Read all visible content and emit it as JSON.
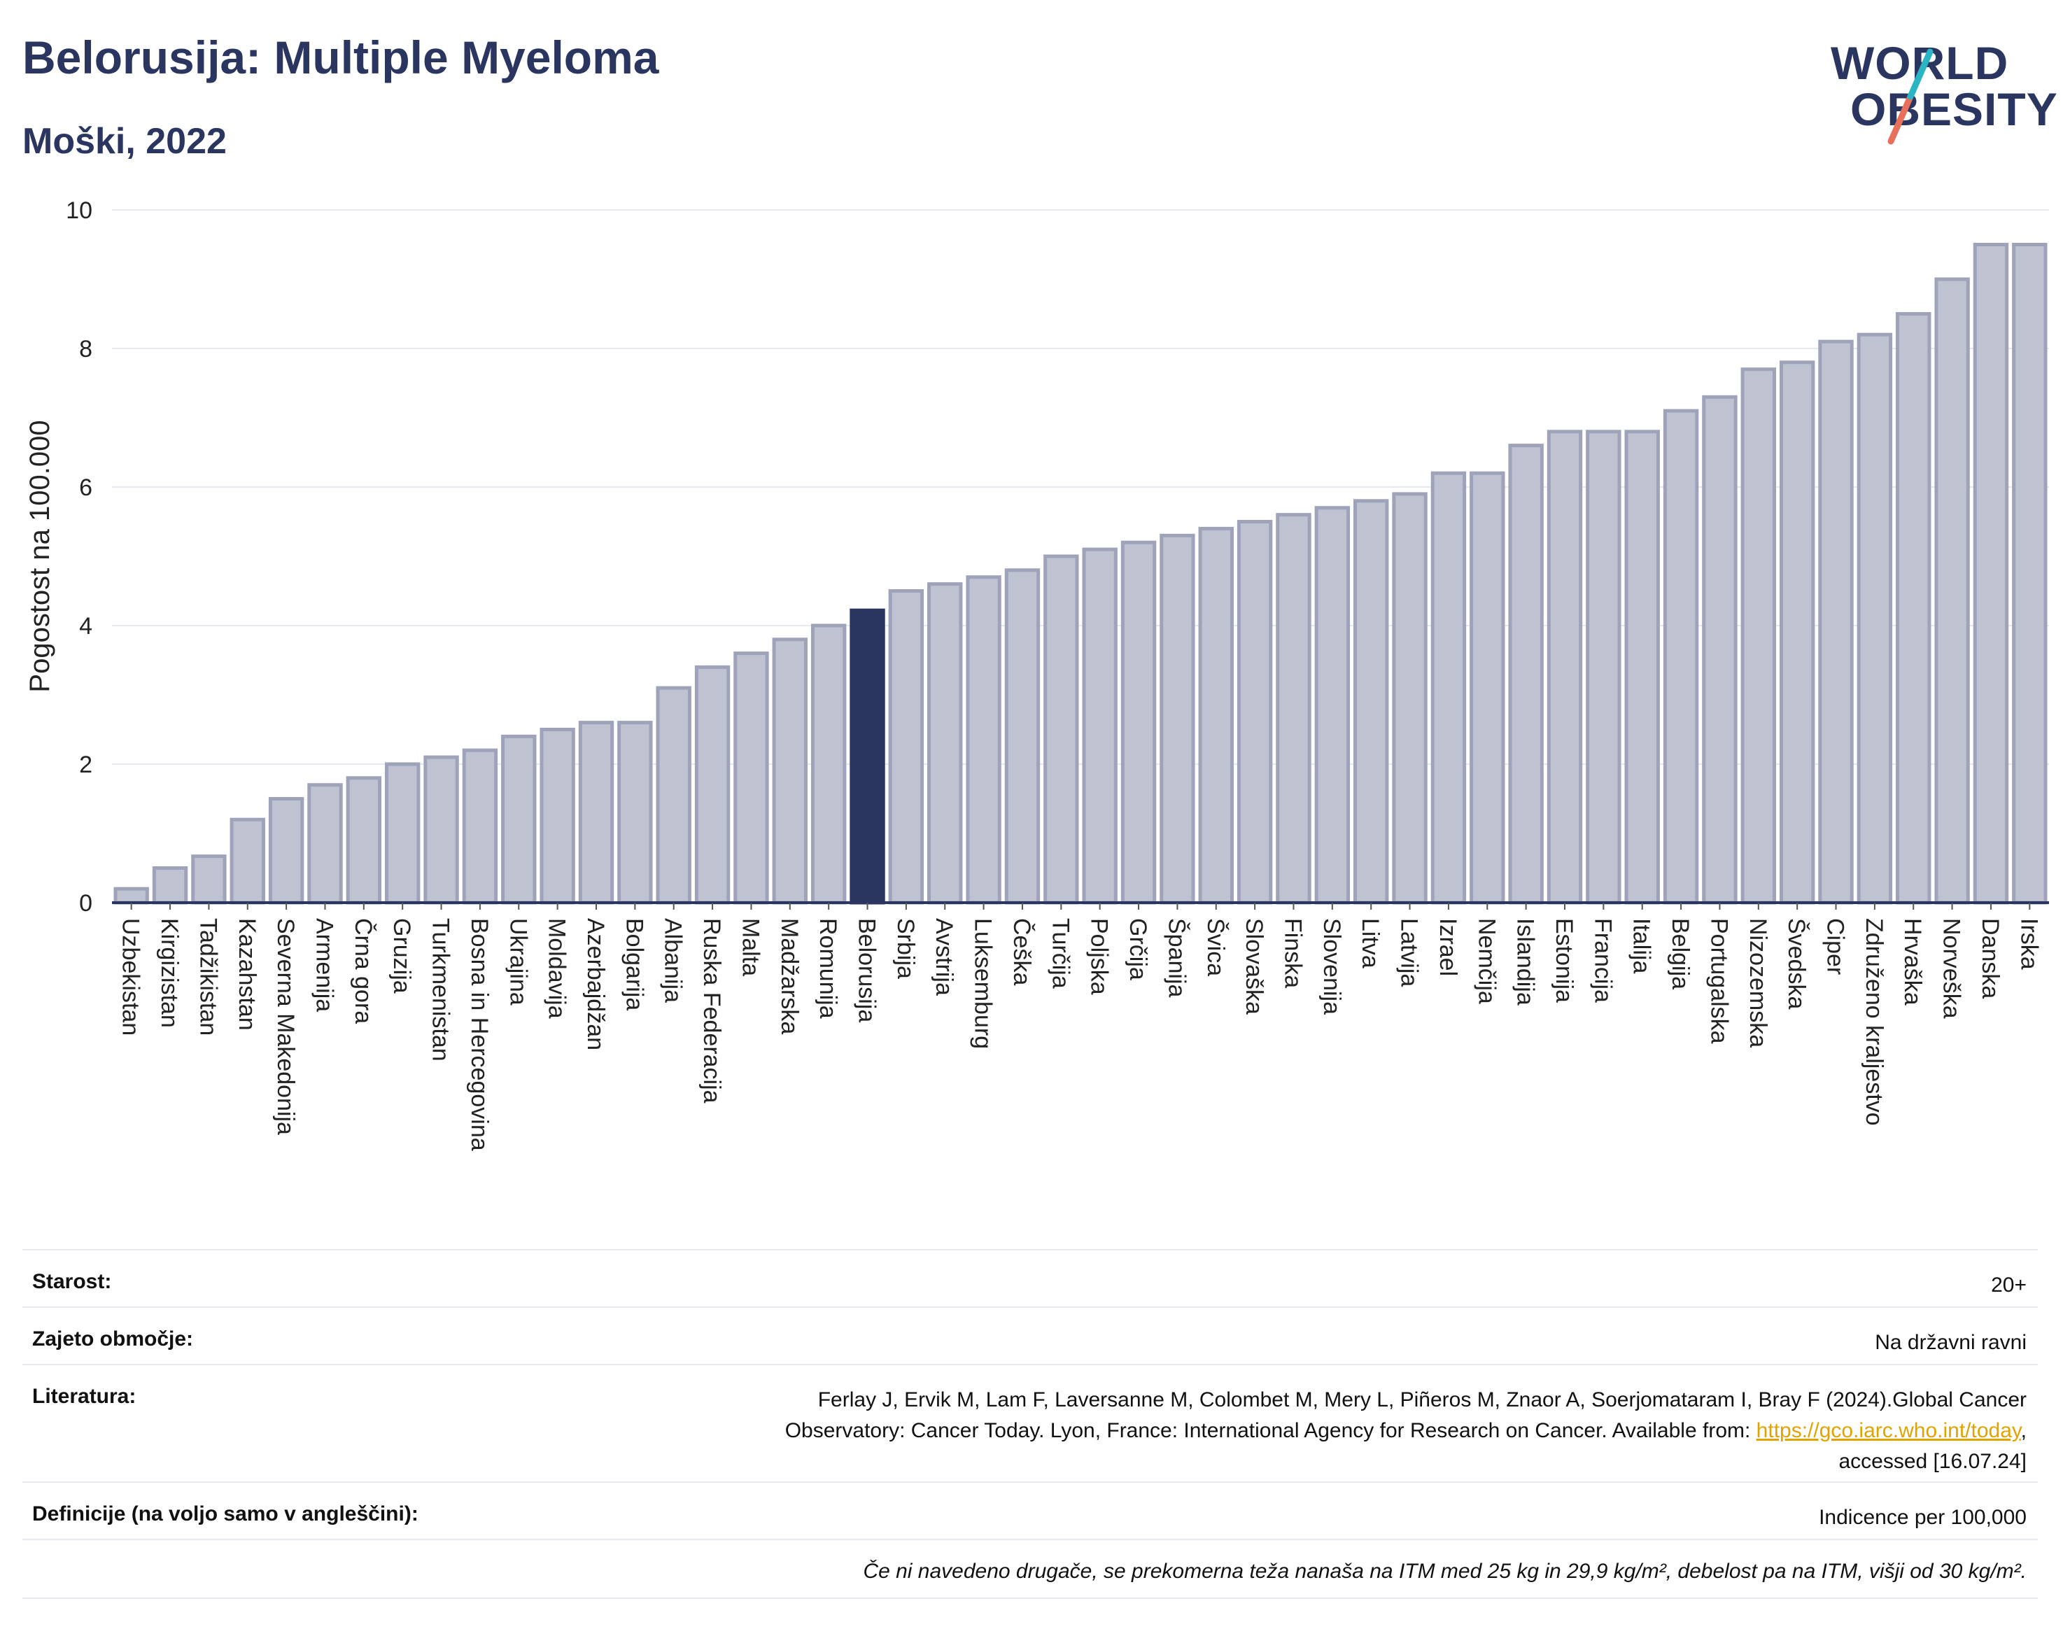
{
  "header": {
    "title": "Belorusija: Multiple Myeloma",
    "subtitle": "Moški, 2022"
  },
  "logo": {
    "line1": "WORLD",
    "line2": "OBESITY",
    "accent_colors": [
      "#2bb5c3",
      "#e8705a"
    ]
  },
  "colors": {
    "bar": "#bfc3d1",
    "bar_stroke": "#9ea3ba",
    "highlight": "#2a3560",
    "grid": "#e6e9ef",
    "axis": "#2a3560"
  },
  "chart_data": {
    "type": "bar",
    "ylabel": "Pogostost na 100.000",
    "ylim": [
      0,
      10
    ],
    "yticks": [
      "0",
      "2",
      "4",
      "6",
      "8",
      "10"
    ],
    "highlight": "Belorusija",
    "categories": [
      "Uzbekistan",
      "Kirgizistan",
      "Tadžikistan",
      "Kazahstan",
      "Severna Makedonija",
      "Armenija",
      "Črna gora",
      "Gruzija",
      "Turkmenistan",
      "Bosna in Hercegovina",
      "Ukrajina",
      "Moldavija",
      "Azerbajdžan",
      "Bolgarija",
      "Albanija",
      "Ruska Federacija",
      "Malta",
      "Madžarska",
      "Romunija",
      "Belorusija",
      "Srbija",
      "Avstrija",
      "Luksemburg",
      "Češka",
      "Turčija",
      "Poljska",
      "Grčija",
      "Španija",
      "Švica",
      "Slovaška",
      "Finska",
      "Slovenija",
      "Litva",
      "Latvija",
      "Izrael",
      "Nemčija",
      "Islandija",
      "Estonija",
      "Francija",
      "Italija",
      "Belgija",
      "Portugalska",
      "Nizozemska",
      "Švedska",
      "Ciper",
      "Združeno kraljestvo",
      "Hrvaška",
      "Norveška",
      "Danska",
      "Irska"
    ],
    "values": [
      0.2,
      0.5,
      0.67,
      1.2,
      1.5,
      1.7,
      1.8,
      2.0,
      2.1,
      2.2,
      2.4,
      2.5,
      2.6,
      2.6,
      3.1,
      3.4,
      3.6,
      3.8,
      4.0,
      4.22,
      4.5,
      4.6,
      4.7,
      4.8,
      5.0,
      5.1,
      5.2,
      5.3,
      5.4,
      5.5,
      5.6,
      5.7,
      5.8,
      5.9,
      6.2,
      6.2,
      6.6,
      6.8,
      6.8,
      6.8,
      7.1,
      7.3,
      7.7,
      7.8,
      8.1,
      8.2,
      8.5,
      9.0,
      9.5,
      9.5
    ]
  },
  "info": {
    "age_label": "Starost:",
    "age_value": "20+",
    "coverage_label": "Zajeto območje:",
    "coverage_value": "Na državni ravni",
    "refs_label": "Literatura:",
    "refs_text_1": "Ferlay J, Ervik M, Lam F, Laversanne M, Colombet M, Mery L, Piñeros M, Znaor A, Soerjomataram I, Bray F (2024).Global Cancer",
    "refs_text_2": "Observatory: Cancer Today. Lyon, France: International Agency for Research on Cancer. Available from: ",
    "refs_link": "https://gco.iarc.who.int/today",
    "refs_text_3": ",",
    "refs_text_4": "accessed [16.07.24]",
    "defs_label": "Definicije (na voljo samo v angleščini):",
    "defs_value": "Indicence per 100,000",
    "note": "Če ni navedeno drugače, se prekomerna teža nanaša na ITM med 25 kg in 29,9 kg/m², debelost pa na ITM, višji od 30 kg/m²."
  }
}
